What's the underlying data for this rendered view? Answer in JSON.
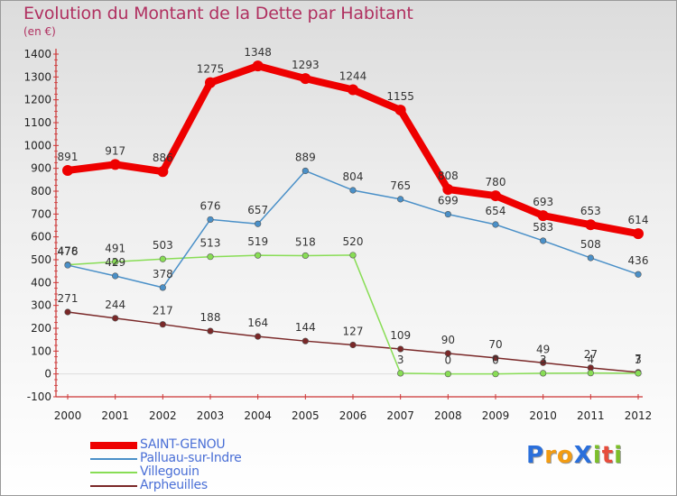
{
  "title": "Evolution du Montant de la Dette par Habitant",
  "subtitle": "(en €)",
  "logo": {
    "text": "ProXiti",
    "letters": [
      {
        "ch": "P",
        "color": "#2a6fdb"
      },
      {
        "ch": "r",
        "color": "#f39c12"
      },
      {
        "ch": "o",
        "color": "#f39c12"
      },
      {
        "ch": "X",
        "color": "#2a6fdb"
      },
      {
        "ch": "i",
        "color": "#7cbf2a"
      },
      {
        "ch": "t",
        "color": "#e74c3c"
      },
      {
        "ch": "i",
        "color": "#7cbf2a"
      }
    ]
  },
  "chart_data": {
    "type": "line",
    "x": [
      "2000",
      "2001",
      "2002",
      "2003",
      "2004",
      "2005",
      "2006",
      "2007",
      "2008",
      "2009",
      "2010",
      "2011",
      "2012"
    ],
    "ylim": [
      -100,
      1400
    ],
    "yticks": [
      -100,
      0,
      100,
      200,
      300,
      400,
      500,
      600,
      700,
      800,
      900,
      1000,
      1100,
      1200,
      1300,
      1400
    ],
    "grid": false,
    "legend_position": "bottom-left",
    "series": [
      {
        "name": "SAINT-GENOU",
        "color": "#ee0000",
        "values": [
          891,
          917,
          886,
          1275,
          1348,
          1293,
          1244,
          1155,
          808,
          780,
          693,
          653,
          614
        ]
      },
      {
        "name": "Palluau-sur-Indre",
        "color": "#4a90c8",
        "values": [
          476,
          429,
          378,
          676,
          657,
          889,
          804,
          765,
          699,
          654,
          583,
          508,
          436
        ]
      },
      {
        "name": "Villegouin",
        "color": "#88dd55",
        "values": [
          478,
          491,
          503,
          513,
          519,
          518,
          520,
          3,
          0,
          0,
          3,
          4,
          3
        ]
      },
      {
        "name": "Arpheuilles",
        "color": "#7a2828",
        "values": [
          271,
          244,
          217,
          188,
          164,
          144,
          127,
          109,
          90,
          70,
          49,
          27,
          7
        ]
      }
    ]
  }
}
